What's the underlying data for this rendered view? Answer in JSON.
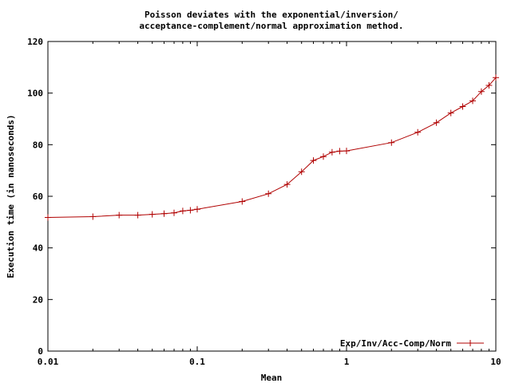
{
  "chart_data": {
    "type": "line",
    "title_lines": [
      "Poisson deviates with the exponential/inversion/",
      "acceptance-complement/normal approximation method."
    ],
    "xlabel": "Mean",
    "ylabel": "Execution time (in nanoseconds)",
    "x_scale": "log",
    "xlim": [
      0.01,
      10
    ],
    "ylim": [
      0,
      120
    ],
    "x_ticks": [
      {
        "value": 0.01,
        "label": "0.01"
      },
      {
        "value": 0.1,
        "label": "0.1"
      },
      {
        "value": 1,
        "label": "1"
      },
      {
        "value": 10,
        "label": "10"
      }
    ],
    "y_ticks": [
      {
        "value": 0,
        "label": "0"
      },
      {
        "value": 20,
        "label": "20"
      },
      {
        "value": 40,
        "label": "40"
      },
      {
        "value": 60,
        "label": "60"
      },
      {
        "value": 80,
        "label": "80"
      },
      {
        "value": 100,
        "label": "100"
      },
      {
        "value": 120,
        "label": "120"
      }
    ],
    "grid": false,
    "legend_position": "bottom-right",
    "series": [
      {
        "name": "Exp/Inv/Acc-Comp/Norm",
        "color": "#b00000",
        "x": [
          0.01,
          0.02,
          0.03,
          0.04,
          0.05,
          0.06,
          0.07,
          0.08,
          0.09,
          0.1,
          0.2,
          0.3,
          0.4,
          0.5,
          0.6,
          0.7,
          0.8,
          0.9,
          1,
          2,
          3,
          4,
          5,
          6,
          7,
          8,
          9,
          10
        ],
        "y": [
          51.8,
          52.1,
          52.7,
          52.7,
          53.0,
          53.3,
          53.6,
          54.3,
          54.6,
          55.0,
          58.0,
          61.0,
          64.6,
          69.5,
          73.9,
          75.4,
          77.1,
          77.5,
          77.6,
          80.8,
          84.8,
          88.5,
          92.3,
          94.8,
          97.0,
          100.6,
          103.0,
          106.0
        ]
      }
    ]
  }
}
